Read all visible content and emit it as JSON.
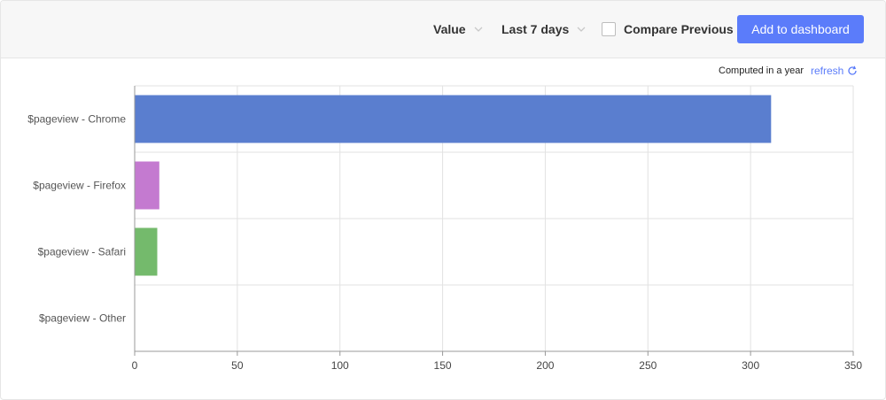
{
  "toolbar": {
    "value_label": "Value",
    "range_label": "Last 7 days",
    "compare_label": "Compare Previous",
    "compare_checked": false,
    "add_button_label": "Add to dashboard",
    "add_button_color": "#5b7cfa"
  },
  "status": {
    "computed_text": "Computed in a year",
    "refresh_label": "refresh"
  },
  "chart_data": {
    "type": "bar",
    "orientation": "horizontal",
    "categories": [
      "$pageview - Chrome",
      "$pageview - Firefox",
      "$pageview - Safari",
      "$pageview - Other"
    ],
    "values": [
      310,
      12,
      11,
      0
    ],
    "colors": [
      "#5a7ecf",
      "#c47ad0",
      "#74ba6c",
      "#f0a050"
    ],
    "xlim": [
      0,
      350
    ],
    "xticks": [
      0,
      50,
      100,
      150,
      200,
      250,
      300,
      350
    ],
    "grid": true,
    "title": "",
    "xlabel": "",
    "ylabel": ""
  }
}
